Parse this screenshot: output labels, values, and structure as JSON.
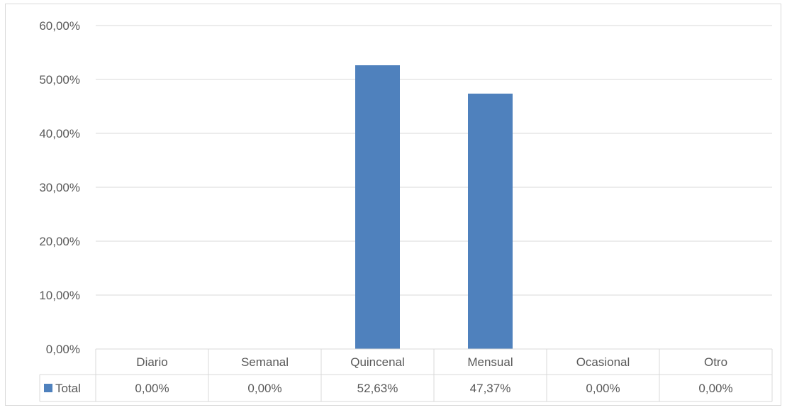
{
  "chart_data": {
    "type": "bar",
    "categories": [
      "Diario",
      "Semanal",
      "Quincenal",
      "Mensual",
      "Ocasional",
      "Otro"
    ],
    "series": [
      {
        "name": "Total",
        "values": [
          0.0,
          0.0,
          52.63,
          47.37,
          0.0,
          0.0
        ],
        "labels": [
          "0,00%",
          "0,00%",
          "52,63%",
          "47,37%",
          "0,00%",
          "0,00%"
        ],
        "color": "#4f81bd"
      }
    ],
    "ylim": [
      0,
      60
    ],
    "yticks": [
      0,
      10,
      20,
      30,
      40,
      50,
      60
    ],
    "ytick_labels": [
      "0,00%",
      "10,00%",
      "20,00%",
      "30,00%",
      "40,00%",
      "50,00%",
      "60,00%"
    ],
    "grid": true,
    "legend": "data-table",
    "data_table": true,
    "title": "",
    "xlabel": "",
    "ylabel": ""
  }
}
